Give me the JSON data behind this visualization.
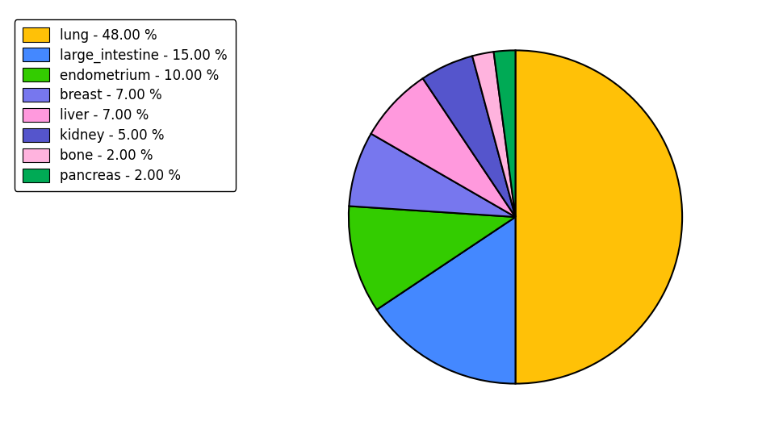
{
  "labels": [
    "lung",
    "large_intestine",
    "endometrium",
    "breast",
    "liver",
    "kidney",
    "bone",
    "pancreas"
  ],
  "values": [
    48.0,
    15.0,
    10.0,
    7.0,
    7.0,
    5.0,
    2.0,
    2.0
  ],
  "colors": [
    "#FFC107",
    "#4488FF",
    "#33CC00",
    "#7777EE",
    "#FF99DD",
    "#5555CC",
    "#FFB3DE",
    "#00AA55"
  ],
  "legend_labels": [
    "lung - 48.00 %",
    "large_intestine - 15.00 %",
    "endometrium - 10.00 %",
    "breast - 7.00 %",
    "liver - 7.00 %",
    "kidney - 5.00 %",
    "bone - 2.00 %",
    "pancreas - 2.00 %"
  ],
  "startangle": 90,
  "background_color": "#ffffff",
  "legend_fontsize": 12,
  "figsize": [
    9.39,
    5.38
  ],
  "dpi": 100
}
